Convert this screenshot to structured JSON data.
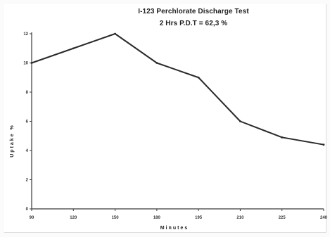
{
  "chart_data": {
    "type": "line",
    "title": "I-123  Perchlorate  Discharge Test",
    "subtitle": "2 Hrs P.D.T = 62,3 %",
    "xlabel": "Minutes",
    "ylabel": "Uptake %",
    "x": [
      90,
      120,
      150,
      180,
      195,
      210,
      225,
      240
    ],
    "x_ticks": [
      "90",
      "120",
      "150",
      "180",
      "195",
      "210",
      "225",
      "240"
    ],
    "y_ticks": [
      "0",
      "2",
      "4",
      "6",
      "8",
      "10",
      "12"
    ],
    "ylim": [
      0,
      12
    ],
    "series": [
      {
        "values": [
          10.0,
          11.0,
          12.0,
          10.0,
          9.0,
          6.0,
          4.9,
          4.4
        ]
      }
    ],
    "grid": false,
    "colors": {
      "line": "#2a2a2a",
      "axis": "#3a3a3a"
    }
  }
}
